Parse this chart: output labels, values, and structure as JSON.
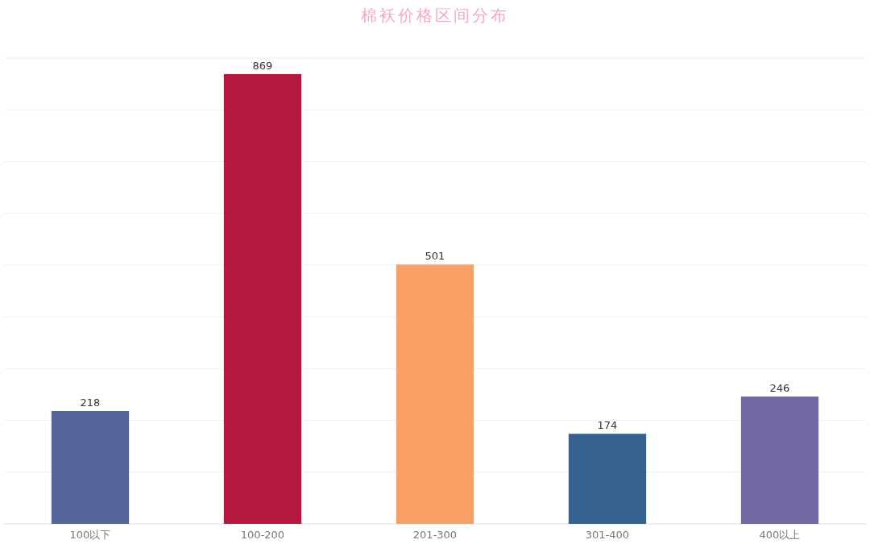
{
  "chart_data": {
    "type": "bar",
    "title": "棉袄价格区间分布",
    "categories": [
      "100以下",
      "100-200",
      "201-300",
      "301-400",
      "400以上"
    ],
    "values": [
      218,
      869,
      501,
      174,
      246
    ],
    "colors": [
      "#56669a",
      "#b5173e",
      "#f9a066",
      "#34618e",
      "#7369a2"
    ],
    "data_labels": true,
    "ylim": [
      0,
      900
    ],
    "yticks": [
      {
        "value": 0,
        "label": null
      },
      {
        "value": 100,
        "label": null
      },
      {
        "value": 200,
        "label": null
      },
      {
        "value": 300,
        "label": null
      },
      {
        "value": 400,
        "label": null
      },
      {
        "value": 500,
        "label": null
      },
      {
        "value": 600,
        "label": null
      },
      {
        "value": 700,
        "label": null
      },
      {
        "value": 800,
        "label": null
      },
      {
        "value": 900,
        "label": null
      }
    ],
    "grid": "y",
    "tick_labels": "x"
  }
}
